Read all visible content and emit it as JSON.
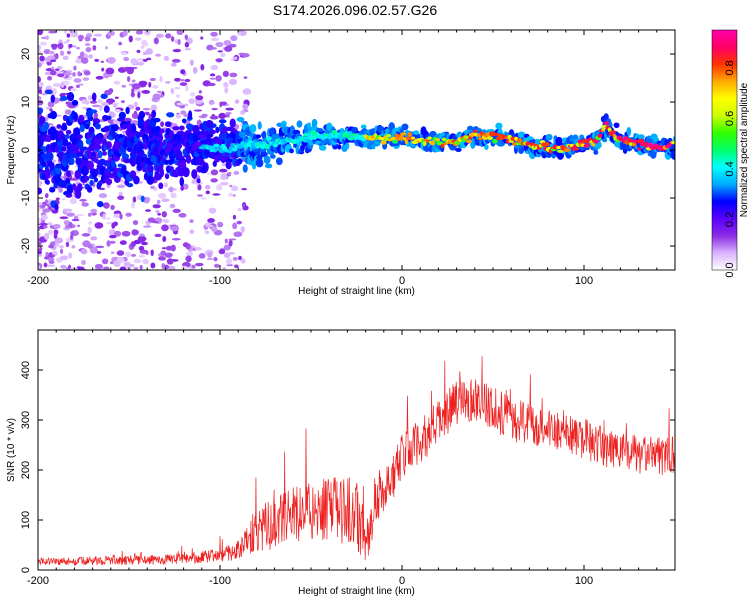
{
  "title": "S174.2026.096.02.57.G26",
  "chart_data": [
    {
      "type": "heatmap",
      "title": "S174.2026.096.02.57.G26",
      "xlabel": "Height of straight line (km)",
      "ylabel": "Frequency (Hz)",
      "xlim": [
        -200,
        150
      ],
      "ylim": [
        -25,
        25
      ],
      "xticks": [
        -200,
        -100,
        0,
        100
      ],
      "yticks": [
        -20,
        -10,
        0,
        10,
        20
      ],
      "colorbar": {
        "label": "Normalized spectral amplitude",
        "range": [
          0,
          0.95
        ],
        "ticks": [
          0.0,
          0.2,
          0.4,
          0.6,
          0.8
        ],
        "colors": [
          "#ffffff",
          "#d9b3ff",
          "#8a2be2",
          "#5a00ff",
          "#0000ff",
          "#00aaff",
          "#00ffff",
          "#00ff66",
          "#33ff00",
          "#ccff00",
          "#ffff00",
          "#ffaa00",
          "#ff3300",
          "#ff0066",
          "#ff00aa"
        ]
      },
      "ridge": {
        "x": [
          -200,
          -150,
          -100,
          -80,
          -60,
          -45,
          -30,
          -20,
          -10,
          0,
          10,
          20,
          30,
          40,
          50,
          60,
          70,
          80,
          90,
          100,
          108,
          112,
          118,
          130,
          140,
          150
        ],
        "y": [
          0,
          0,
          0.5,
          1,
          2,
          3,
          3,
          2.5,
          2.5,
          2.5,
          2,
          1.5,
          2,
          3,
          3,
          2.5,
          1,
          0.5,
          0.5,
          1,
          2,
          5,
          2.5,
          1,
          0.5,
          1
        ],
        "spread": [
          12,
          9,
          5,
          4,
          3.5,
          3,
          2.5,
          2,
          2,
          2,
          2,
          2,
          2,
          2,
          2,
          2,
          2,
          2,
          2,
          2,
          2,
          3,
          2.5,
          2,
          2,
          2
        ]
      }
    },
    {
      "type": "line",
      "title": "",
      "xlabel": "Height of straight line (km)",
      "ylabel": "SNR (10 * v/v)",
      "xlim": [
        -200,
        150
      ],
      "ylim": [
        0,
        480
      ],
      "xticks": [
        -200,
        -100,
        0,
        100
      ],
      "yticks": [
        0,
        100,
        200,
        300,
        400
      ],
      "series": [
        {
          "name": "SNR",
          "color": "#ee2020",
          "x": [
            -200,
            -180,
            -160,
            -140,
            -120,
            -100,
            -90,
            -85,
            -80,
            -75,
            -70,
            -60,
            -50,
            -40,
            -30,
            -25,
            -20,
            -18,
            -17,
            -15,
            -10,
            -5,
            0,
            10,
            20,
            30,
            40,
            50,
            60,
            80,
            100,
            120,
            140,
            150
          ],
          "y": [
            18,
            17,
            20,
            20,
            22,
            30,
            40,
            65,
            80,
            85,
            95,
            110,
            120,
            120,
            120,
            110,
            70,
            60,
            90,
            140,
            160,
            185,
            230,
            255,
            295,
            335,
            345,
            325,
            300,
            285,
            260,
            235,
            225,
            235
          ],
          "noise": [
            8,
            8,
            10,
            10,
            10,
            14,
            20,
            35,
            45,
            50,
            50,
            55,
            60,
            65,
            70,
            70,
            55,
            40,
            60,
            60,
            45,
            45,
            45,
            45,
            45,
            45,
            45,
            45,
            45,
            40,
            40,
            40,
            40,
            40
          ]
        }
      ]
    }
  ]
}
